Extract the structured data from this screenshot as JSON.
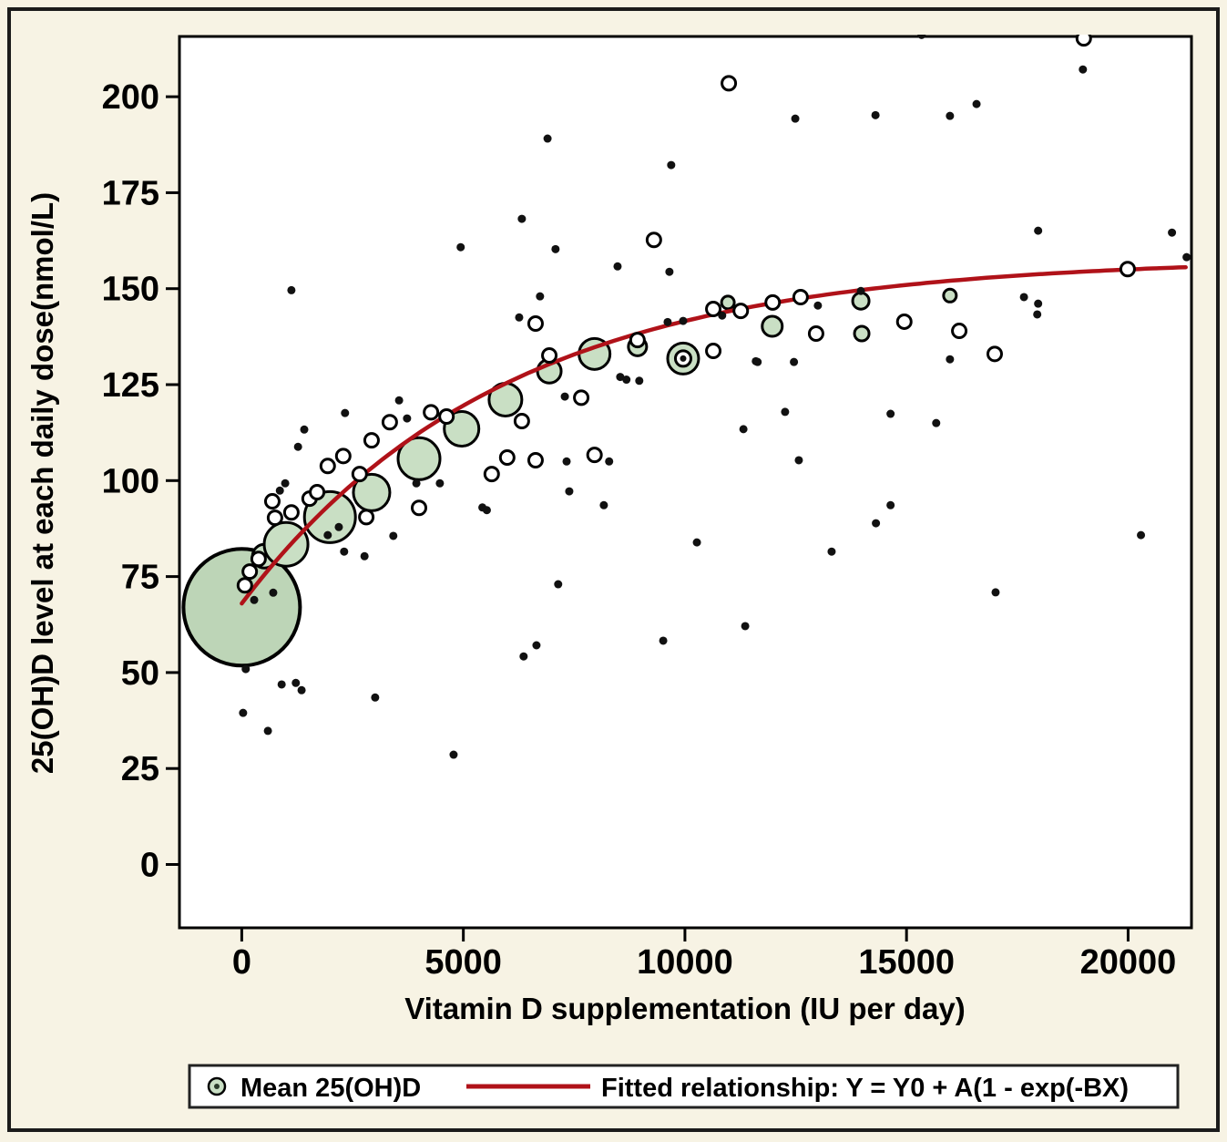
{
  "figure": {
    "background": "#f7f3e4",
    "frame_color": "#1b1b1b",
    "plot_background": "#ffffff"
  },
  "legend": {
    "items": [
      {
        "label": "Mean 25(OH)D",
        "marker": "green-circle-icon"
      },
      {
        "label": "Fitted relationship: Y = Y0 + A(1 - exp(-BX)",
        "marker": "red-line-icon"
      }
    ]
  },
  "chart_data": {
    "type": "scatter",
    "title": "",
    "xlabel": "Vitamin D supplementation (IU per day)",
    "ylabel": "25(OH)D level at each daily dose(nmol/L)",
    "xlim": [
      -1406,
      21430
    ],
    "ylim": [
      -16.5,
      215.7
    ],
    "x_ticks": [
      0,
      5000,
      10000,
      15000,
      20000
    ],
    "y_ticks": [
      0,
      25,
      50,
      75,
      100,
      125,
      150,
      175,
      200
    ],
    "grid": false,
    "legend_position": "bottom",
    "colors": {
      "mean_fill": "#c9dfc4",
      "mean_big_fill": "#bdd5b7",
      "outline": "#000000",
      "fit_line": "#b01219",
      "dot": "#111111",
      "open_fill": "#ffffff"
    },
    "fit": {
      "equation": "Y = Y0 + A(1 - exp(-BX)",
      "Y0": 68,
      "A": 90,
      "B": 0.00017,
      "x_range": [
        0,
        21430
      ]
    },
    "means": [
      {
        "dose": 0,
        "value": 67.0,
        "r": 64,
        "big": true
      },
      {
        "dose": 510,
        "value": 80.3,
        "r": 13
      },
      {
        "dose": 1000,
        "value": 83.4,
        "r": 24
      },
      {
        "dose": 1990,
        "value": 90.5,
        "r": 28
      },
      {
        "dose": 2930,
        "value": 96.9,
        "r": 20
      },
      {
        "dose": 4000,
        "value": 105.7,
        "r": 23
      },
      {
        "dose": 4960,
        "value": 113.5,
        "r": 19
      },
      {
        "dose": 5950,
        "value": 121.1,
        "r": 18
      },
      {
        "dose": 6940,
        "value": 128.5,
        "r": 13
      },
      {
        "dose": 7960,
        "value": 133.0,
        "r": 17
      },
      {
        "dose": 8930,
        "value": 134.9,
        "r": 10
      },
      {
        "dose": 9960,
        "value": 131.8,
        "r": 17,
        "ring": true
      },
      {
        "dose": 10970,
        "value": 146.4,
        "r": 7
      },
      {
        "dose": 11970,
        "value": 140.2,
        "r": 11
      },
      {
        "dose": 13970,
        "value": 146.8,
        "r": 9
      },
      {
        "dose": 13990,
        "value": 138.3,
        "r": 8
      },
      {
        "dose": 15980,
        "value": 148.2,
        "r": 7
      }
    ],
    "open_circles": [
      [
        70,
        72.7
      ],
      [
        180,
        76.3
      ],
      [
        380,
        79.6
      ],
      [
        690,
        94.6
      ],
      [
        750,
        90.3
      ],
      [
        1120,
        91.7
      ],
      [
        1530,
        95.3
      ],
      [
        1700,
        97.0
      ],
      [
        1940,
        103.8
      ],
      [
        2290,
        106.4
      ],
      [
        2660,
        101.7
      ],
      [
        2810,
        90.5
      ],
      [
        2930,
        110.5
      ],
      [
        3340,
        115.2
      ],
      [
        4000,
        92.9
      ],
      [
        4270,
        117.8
      ],
      [
        4620,
        116.7
      ],
      [
        5640,
        101.7
      ],
      [
        5990,
        106.0
      ],
      [
        6320,
        115.5
      ],
      [
        6630,
        105.3
      ],
      [
        6630,
        140.9
      ],
      [
        6940,
        132.6
      ],
      [
        7660,
        121.6
      ],
      [
        7960,
        106.7
      ],
      [
        8930,
        136.6
      ],
      [
        9300,
        162.7
      ],
      [
        10640,
        133.8
      ],
      [
        10640,
        144.7
      ],
      [
        10990,
        203.5
      ],
      [
        11260,
        144.2
      ],
      [
        11980,
        146.4
      ],
      [
        12610,
        147.8
      ],
      [
        12960,
        138.3
      ],
      [
        14950,
        141.4
      ],
      [
        16190,
        139.0
      ],
      [
        16990,
        133.0
      ],
      [
        19000,
        215.2
      ],
      [
        19990,
        155.1
      ]
    ],
    "dots": [
      [
        30,
        39.5
      ],
      [
        90,
        50.9
      ],
      [
        280,
        68.9
      ],
      [
        590,
        34.8
      ],
      [
        710,
        70.8
      ],
      [
        860,
        97.4
      ],
      [
        900,
        46.9
      ],
      [
        980,
        99.3
      ],
      [
        1120,
        149.6
      ],
      [
        1220,
        47.3
      ],
      [
        1270,
        108.8
      ],
      [
        1350,
        45.4
      ],
      [
        1410,
        113.3
      ],
      [
        1940,
        85.8
      ],
      [
        2190,
        87.9
      ],
      [
        2310,
        81.5
      ],
      [
        2330,
        117.6
      ],
      [
        2770,
        80.3
      ],
      [
        3010,
        43.5
      ],
      [
        3420,
        85.6
      ],
      [
        3550,
        120.9
      ],
      [
        3730,
        116.2
      ],
      [
        3940,
        99.3
      ],
      [
        4470,
        99.3
      ],
      [
        4780,
        28.6
      ],
      [
        4940,
        160.8
      ],
      [
        5430,
        93.0
      ],
      [
        5530,
        92.3
      ],
      [
        6260,
        115.9
      ],
      [
        6360,
        115.2
      ],
      [
        6260,
        142.5
      ],
      [
        6320,
        168.2
      ],
      [
        6360,
        54.2
      ],
      [
        6650,
        57.1
      ],
      [
        6730,
        148.0
      ],
      [
        6900,
        189.1
      ],
      [
        7080,
        160.3
      ],
      [
        7140,
        73.0
      ],
      [
        7290,
        121.9
      ],
      [
        7330,
        105.0
      ],
      [
        7390,
        97.2
      ],
      [
        8170,
        93.6
      ],
      [
        8290,
        105.0
      ],
      [
        8480,
        155.8
      ],
      [
        8540,
        127.0
      ],
      [
        8680,
        126.3
      ],
      [
        8970,
        126.0
      ],
      [
        9510,
        58.3
      ],
      [
        9610,
        141.3
      ],
      [
        9650,
        154.4
      ],
      [
        9690,
        182.2
      ],
      [
        9960,
        141.6
      ],
      [
        10270,
        83.9
      ],
      [
        10840,
        143.0
      ],
      [
        11320,
        113.4
      ],
      [
        11360,
        62.1
      ],
      [
        11600,
        131.1
      ],
      [
        11640,
        130.9
      ],
      [
        12260,
        117.9
      ],
      [
        12460,
        130.9
      ],
      [
        12490,
        194.3
      ],
      [
        12570,
        105.3
      ],
      [
        13000,
        145.6
      ],
      [
        13310,
        81.5
      ],
      [
        13970,
        149.4
      ],
      [
        14300,
        195.2
      ],
      [
        14310,
        88.9
      ],
      [
        14640,
        93.6
      ],
      [
        14640,
        117.4
      ],
      [
        15340,
        216.1
      ],
      [
        15670,
        115.0
      ],
      [
        15980,
        131.6
      ],
      [
        15980,
        195.0
      ],
      [
        16580,
        198.1
      ],
      [
        17010,
        70.9
      ],
      [
        17650,
        147.8
      ],
      [
        17950,
        143.3
      ],
      [
        17970,
        146.1
      ],
      [
        17970,
        165.1
      ],
      [
        18980,
        207.1
      ],
      [
        20290,
        85.8
      ],
      [
        20990,
        164.6
      ],
      [
        21320,
        158.2
      ]
    ]
  }
}
